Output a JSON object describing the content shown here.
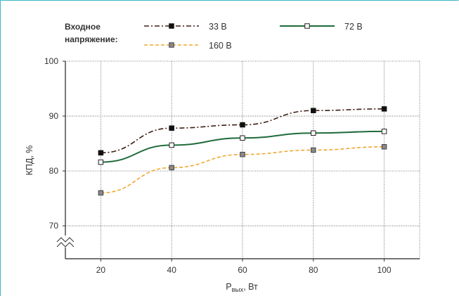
{
  "colors": {
    "border": "#3fb6c9",
    "series_33": "#3d2016",
    "series_72": "#1f6b3a",
    "series_160": "#f0a830",
    "marker_fill_160": "#8a8a8a"
  },
  "chart_data": {
    "type": "line",
    "xlabel_main": "P",
    "xlabel_sub": "вых",
    "xlabel_unit": ", Вт",
    "ylabel": "КПД, %",
    "x_ticks": [
      "20",
      "40",
      "60",
      "80",
      "100"
    ],
    "y_ticks": [
      "70",
      "80",
      "90",
      "100"
    ],
    "xlim": [
      10,
      110
    ],
    "ylim": [
      64,
      100
    ],
    "y_axis_break": true,
    "grid": true,
    "legend_title_line1": "Входное",
    "legend_title_line2": "напряжение:",
    "legend_position": "top",
    "series": [
      {
        "name": "33 В",
        "x": [
          20,
          40,
          60,
          80,
          100
        ],
        "values": [
          83.3,
          87.8,
          88.4,
          91.0,
          91.3
        ],
        "line_style": "dash-dot",
        "marker": "filled-square"
      },
      {
        "name": "72 В",
        "x": [
          20,
          40,
          60,
          80,
          100
        ],
        "values": [
          81.6,
          84.7,
          86.0,
          86.9,
          87.2
        ],
        "line_style": "solid",
        "marker": "open-square"
      },
      {
        "name": "160 В",
        "x": [
          20,
          40,
          60,
          80,
          100
        ],
        "values": [
          76.0,
          80.6,
          83.0,
          83.8,
          84.4
        ],
        "line_style": "dashed",
        "marker": "grey-square"
      }
    ]
  }
}
